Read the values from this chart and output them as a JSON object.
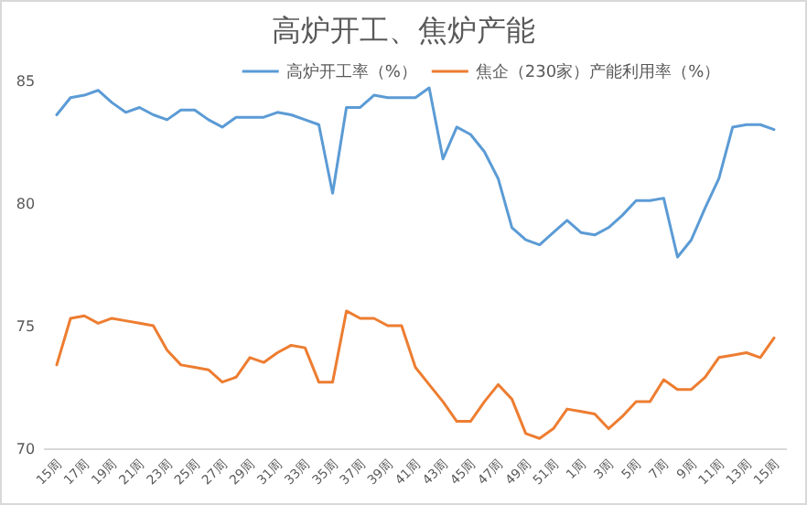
{
  "chart_data": {
    "type": "line",
    "title": "高炉开工、焦炉产能",
    "categories": [
      "15周",
      null,
      "17周",
      null,
      "19周",
      null,
      "21周",
      null,
      "23周",
      null,
      "25周",
      null,
      "27周",
      null,
      "29周",
      null,
      "31周",
      null,
      "33周",
      null,
      "35周",
      null,
      "37周",
      null,
      "39周",
      null,
      "41周",
      null,
      "43周",
      null,
      "45周",
      null,
      "47周",
      null,
      "49周",
      null,
      "51周",
      null,
      "1周",
      null,
      "3周",
      null,
      "5周",
      null,
      "7周",
      null,
      "9周",
      null,
      "11周",
      null,
      "13周",
      null,
      "15周"
    ],
    "series": [
      {
        "name": "高炉开工率（%）",
        "color": "#5b9bd5",
        "values": [
          83.6,
          84.3,
          84.4,
          84.6,
          84.1,
          83.7,
          83.9,
          83.6,
          83.4,
          83.8,
          83.8,
          83.4,
          83.1,
          83.5,
          83.5,
          83.5,
          83.7,
          83.6,
          83.4,
          83.2,
          80.4,
          83.9,
          83.9,
          84.4,
          84.3,
          84.3,
          84.3,
          84.7,
          81.8,
          83.1,
          82.8,
          82.1,
          81.0,
          79.0,
          78.5,
          78.3,
          78.8,
          79.3,
          78.8,
          78.7,
          79.0,
          79.5,
          80.1,
          80.1,
          80.2,
          77.8,
          78.5,
          79.8,
          81.0,
          83.1,
          83.2,
          83.2,
          83.0
        ]
      },
      {
        "name": "焦企（230家）产能利用率（%）",
        "color": "#ed7d31",
        "values": [
          73.4,
          75.3,
          75.4,
          75.1,
          75.3,
          75.2,
          75.1,
          75.0,
          74.0,
          73.4,
          73.3,
          73.2,
          72.7,
          72.9,
          73.7,
          73.5,
          73.9,
          74.2,
          74.1,
          72.7,
          72.7,
          75.6,
          75.3,
          75.3,
          75.0,
          75.0,
          73.3,
          72.6,
          71.9,
          71.1,
          71.1,
          71.9,
          72.6,
          72.0,
          70.6,
          70.4,
          70.8,
          71.6,
          71.5,
          71.4,
          70.8,
          71.3,
          71.9,
          71.9,
          72.8,
          72.4,
          72.4,
          72.9,
          73.7,
          73.8,
          73.9,
          73.7,
          74.5
        ]
      }
    ],
    "ylim": [
      70,
      85
    ],
    "yticks": [
      70,
      75,
      80,
      85
    ],
    "grid": false,
    "legend": "top",
    "line_style": "solid",
    "marker": "none"
  }
}
